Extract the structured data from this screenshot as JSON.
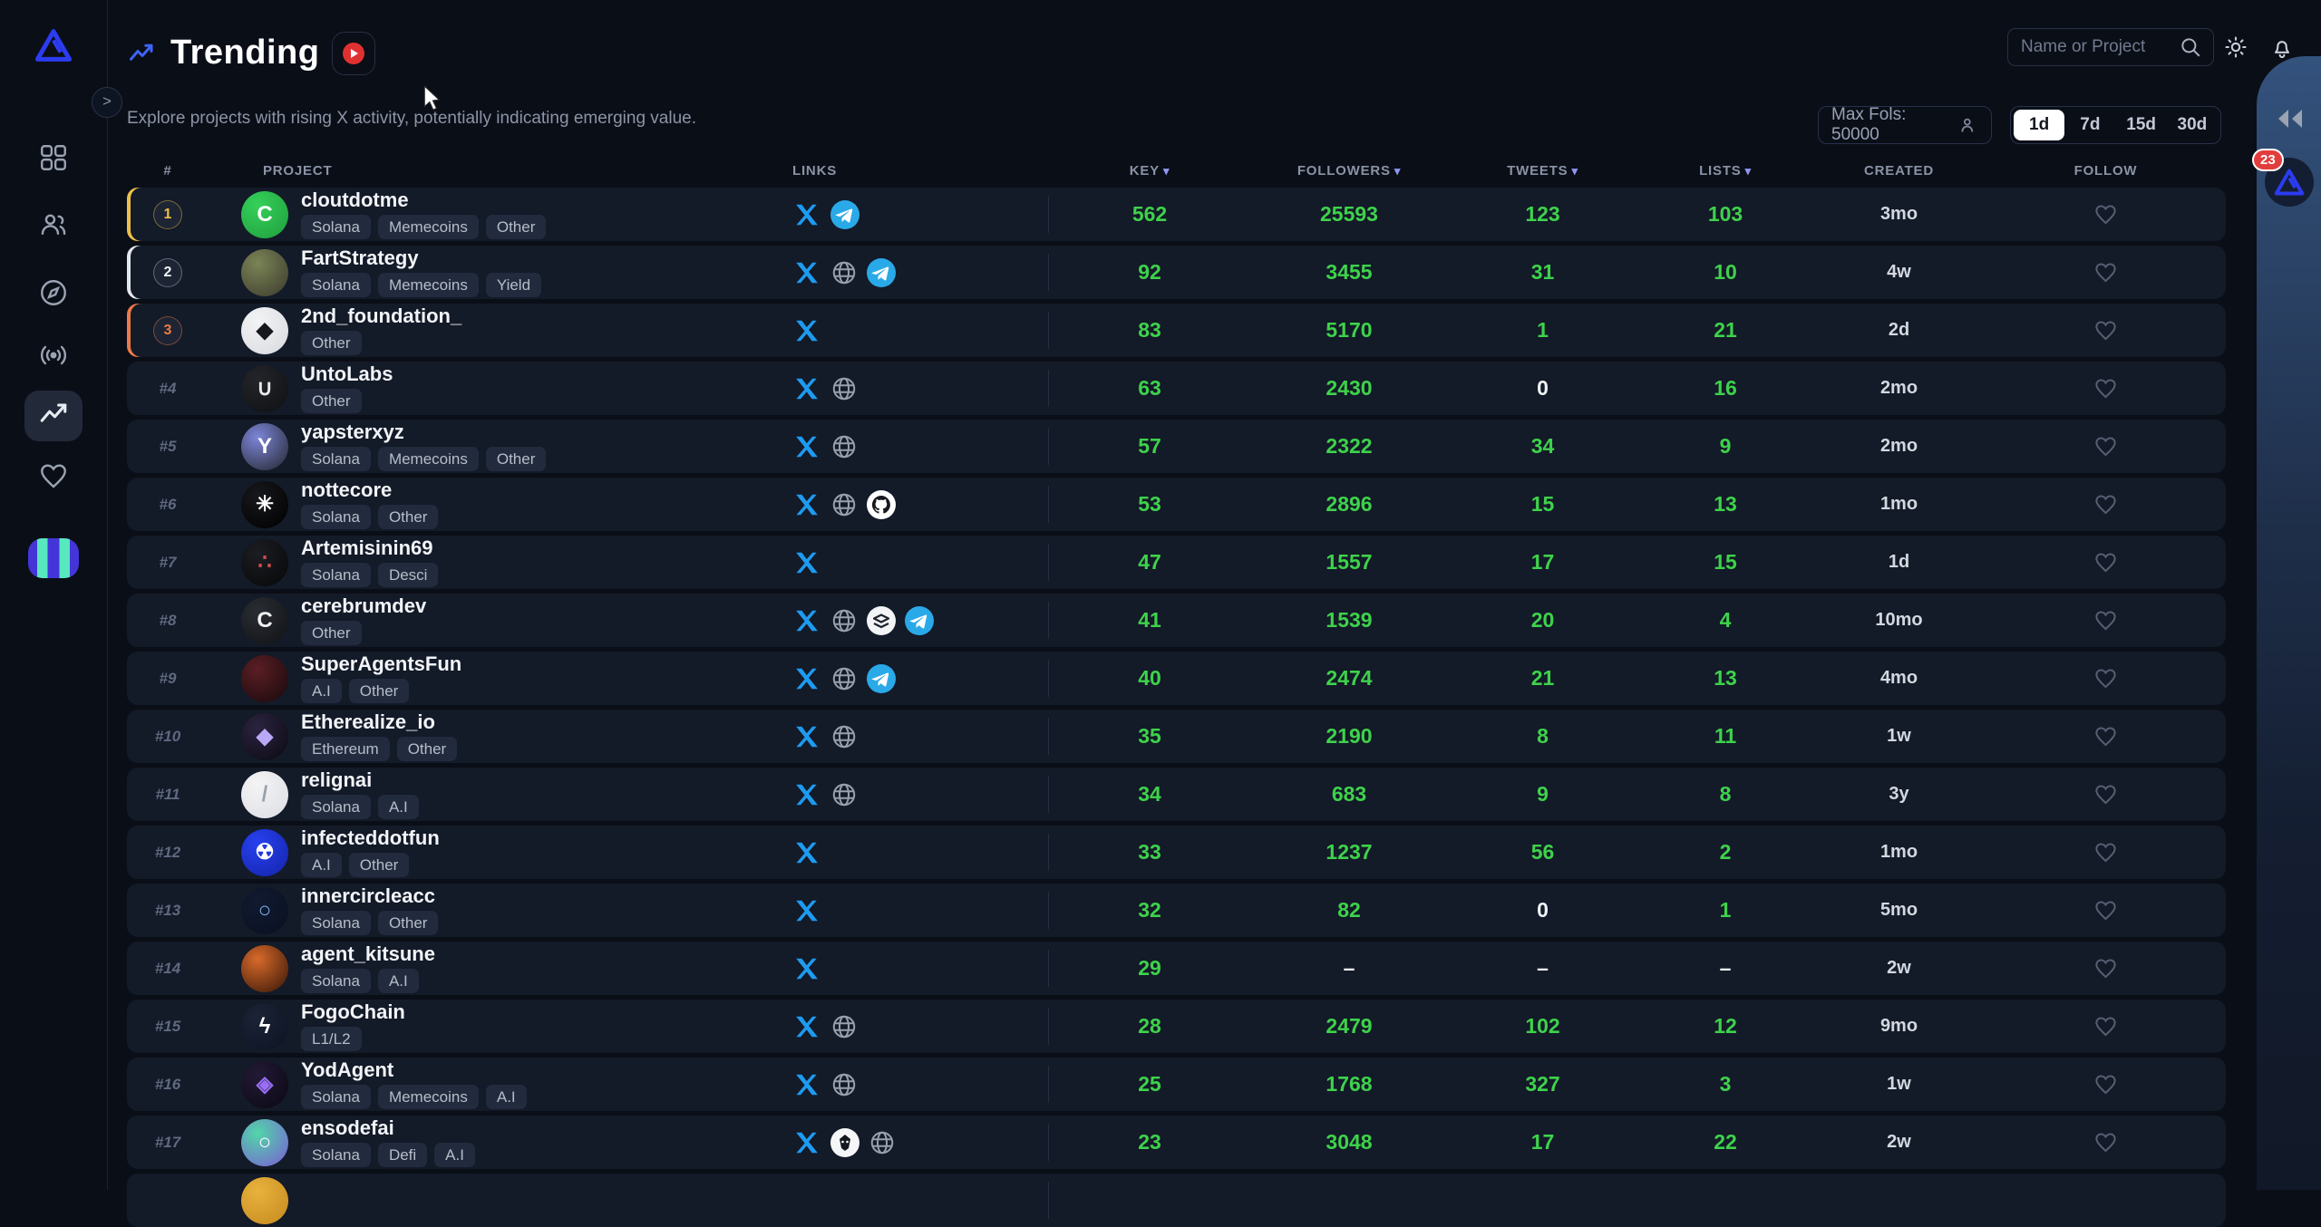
{
  "header": {
    "title": "Trending",
    "subtitle": "Explore projects with rising X activity, potentially indicating emerging value."
  },
  "topbar": {
    "search_placeholder": "Name or Project"
  },
  "filters": {
    "max_fols_label": "Max Fols: 50000",
    "ranges": [
      "1d",
      "7d",
      "15d",
      "30d"
    ],
    "active_range": "1d"
  },
  "right_panel": {
    "notification_count": "23"
  },
  "colors": {
    "accent_green": "#3ed24b",
    "gold": "#edbf4a",
    "silver": "#e3e8f0",
    "bronze": "#ec7a45",
    "x_blue": "#1d9bf0",
    "telegram_blue": "#2aa9e8",
    "row_bg": "#131a28",
    "page_bg": "#0a0e17"
  },
  "sidebar": {
    "items": [
      {
        "name": "dashboard",
        "icon": "grid-icon",
        "active": false
      },
      {
        "name": "community",
        "icon": "people-icon",
        "active": false
      },
      {
        "name": "explore",
        "icon": "compass-icon",
        "active": false
      },
      {
        "name": "signals",
        "icon": "broadcast-icon",
        "active": false
      },
      {
        "name": "trending",
        "icon": "trending-icon",
        "active": true
      },
      {
        "name": "favorites",
        "icon": "heart-icon",
        "active": false
      }
    ]
  },
  "table": {
    "columns": [
      {
        "key": "rank",
        "label": "#",
        "sortable": false
      },
      {
        "key": "project",
        "label": "PROJECT",
        "sortable": false
      },
      {
        "key": "links",
        "label": "LINKS",
        "sortable": false
      },
      {
        "key": "key",
        "label": "KEY",
        "sortable": true
      },
      {
        "key": "followers",
        "label": "FOLLOWERS",
        "sortable": true
      },
      {
        "key": "tweets",
        "label": "TWEETS",
        "sortable": true
      },
      {
        "key": "lists",
        "label": "LISTS",
        "sortable": true
      },
      {
        "key": "created",
        "label": "CREATED",
        "sortable": false
      },
      {
        "key": "follow",
        "label": "FOLLOW",
        "sortable": false
      }
    ],
    "rows": [
      {
        "rank": 1,
        "medal": "gold",
        "name": "cloutdotme",
        "tags": [
          "Solana",
          "Memecoins",
          "Other"
        ],
        "links": [
          "x",
          "telegram"
        ],
        "key": "562",
        "followers": "25593",
        "tweets": "123",
        "lists": "103",
        "created": "3mo",
        "avatar": {
          "bg1": "#35d05a",
          "bg2": "#1f9e3c",
          "glyph": "C",
          "fg": "#ffffff"
        }
      },
      {
        "rank": 2,
        "medal": "silver",
        "name": "FartStrategy",
        "tags": [
          "Solana",
          "Memecoins",
          "Yield"
        ],
        "links": [
          "x",
          "globe",
          "telegram"
        ],
        "key": "92",
        "followers": "3455",
        "tweets": "31",
        "lists": "10",
        "created": "4w",
        "avatar": {
          "bg1": "#7a8456",
          "bg2": "#3c3a2c",
          "glyph": "",
          "fg": "#ffffff"
        }
      },
      {
        "rank": 3,
        "medal": "bronze",
        "name": "2nd_foundation_",
        "tags": [
          "Other"
        ],
        "links": [
          "x"
        ],
        "key": "83",
        "followers": "5170",
        "tweets": "1",
        "lists": "21",
        "created": "2d",
        "avatar": {
          "bg1": "#f2f3f5",
          "bg2": "#d8dade",
          "glyph": "◆",
          "fg": "#16181d"
        }
      },
      {
        "rank": 4,
        "medal": null,
        "name": "UntoLabs",
        "tags": [
          "Other"
        ],
        "links": [
          "x",
          "globe"
        ],
        "key": "63",
        "followers": "2430",
        "tweets": "0",
        "lists": "16",
        "created": "2mo",
        "avatar": {
          "bg1": "#23252a",
          "bg2": "#0e1013",
          "glyph": "∪",
          "fg": "#e8e8e8"
        }
      },
      {
        "rank": 5,
        "medal": null,
        "name": "yapsterxyz",
        "tags": [
          "Solana",
          "Memecoins",
          "Other"
        ],
        "links": [
          "x",
          "globe"
        ],
        "key": "57",
        "followers": "2322",
        "tweets": "34",
        "lists": "9",
        "created": "2mo",
        "avatar": {
          "bg1": "#7c86d8",
          "bg2": "#23252d",
          "glyph": "Y",
          "fg": "#ffffff"
        }
      },
      {
        "rank": 6,
        "medal": null,
        "name": "nottecore",
        "tags": [
          "Solana",
          "Other"
        ],
        "links": [
          "x",
          "globe",
          "github"
        ],
        "key": "53",
        "followers": "2896",
        "tweets": "15",
        "lists": "13",
        "created": "1mo",
        "avatar": {
          "bg1": "#17181c",
          "bg2": "#000000",
          "glyph": "✳",
          "fg": "#ffffff"
        }
      },
      {
        "rank": 7,
        "medal": null,
        "name": "Artemisinin69",
        "tags": [
          "Solana",
          "Desci"
        ],
        "links": [
          "x"
        ],
        "key": "47",
        "followers": "1557",
        "tweets": "17",
        "lists": "15",
        "created": "1d",
        "avatar": {
          "bg1": "#1c1d22",
          "bg2": "#060708",
          "glyph": "∴",
          "fg": "#d05050"
        }
      },
      {
        "rank": 8,
        "medal": null,
        "name": "cerebrumdev",
        "tags": [
          "Other"
        ],
        "links": [
          "x",
          "globe",
          "docs",
          "telegram"
        ],
        "key": "41",
        "followers": "1539",
        "tweets": "20",
        "lists": "4",
        "created": "10mo",
        "avatar": {
          "bg1": "#2a2d33",
          "bg2": "#101216",
          "glyph": "C",
          "fg": "#f2f3f5"
        }
      },
      {
        "rank": 9,
        "medal": null,
        "name": "SuperAgentsFun",
        "tags": [
          "A.I",
          "Other"
        ],
        "links": [
          "x",
          "globe",
          "telegram"
        ],
        "key": "40",
        "followers": "2474",
        "tweets": "21",
        "lists": "13",
        "created": "4mo",
        "avatar": {
          "bg1": "#5a1e24",
          "bg2": "#17090c",
          "glyph": "",
          "fg": "#ffffff"
        }
      },
      {
        "rank": 10,
        "medal": null,
        "name": "Etherealize_io",
        "tags": [
          "Ethereum",
          "Other"
        ],
        "links": [
          "x",
          "globe"
        ],
        "key": "35",
        "followers": "2190",
        "tweets": "8",
        "lists": "11",
        "created": "1w",
        "avatar": {
          "bg1": "#2b2340",
          "bg2": "#0b0a12",
          "glyph": "◆",
          "fg": "#b9a8f5"
        }
      },
      {
        "rank": 11,
        "medal": null,
        "name": "relignai",
        "tags": [
          "Solana",
          "A.I"
        ],
        "links": [
          "x",
          "globe"
        ],
        "key": "34",
        "followers": "683",
        "tweets": "9",
        "lists": "8",
        "created": "3y",
        "avatar": {
          "bg1": "#f4f4f6",
          "bg2": "#dcdde2",
          "glyph": "/",
          "fg": "#9aa0ab"
        }
      },
      {
        "rank": 12,
        "medal": null,
        "name": "infecteddotfun",
        "tags": [
          "A.I",
          "Other"
        ],
        "links": [
          "x"
        ],
        "key": "33",
        "followers": "1237",
        "tweets": "56",
        "lists": "2",
        "created": "1mo",
        "avatar": {
          "bg1": "#2741f0",
          "bg2": "#1423a8",
          "glyph": "☢",
          "fg": "#ffffff"
        }
      },
      {
        "rank": 13,
        "medal": null,
        "name": "innercircleacc",
        "tags": [
          "Solana",
          "Other"
        ],
        "links": [
          "x"
        ],
        "key": "32",
        "followers": "82",
        "tweets": "0",
        "lists": "1",
        "created": "5mo",
        "avatar": {
          "bg1": "#101a30",
          "bg2": "#0a1020",
          "glyph": "○",
          "fg": "#7db5f0"
        }
      },
      {
        "rank": 14,
        "medal": null,
        "name": "agent_kitsune",
        "tags": [
          "Solana",
          "A.I"
        ],
        "links": [
          "x"
        ],
        "key": "29",
        "followers": "–",
        "tweets": "–",
        "lists": "–",
        "created": "2w",
        "avatar": {
          "bg1": "#d86a2a",
          "bg2": "#341407",
          "glyph": "",
          "fg": "#ffffff"
        }
      },
      {
        "rank": 15,
        "medal": null,
        "name": "FogoChain",
        "tags": [
          "L1/L2"
        ],
        "links": [
          "x",
          "globe"
        ],
        "key": "28",
        "followers": "2479",
        "tweets": "102",
        "lists": "12",
        "created": "9mo",
        "avatar": {
          "bg1": "#1b2336",
          "bg2": "#0d1322",
          "glyph": "ϟ",
          "fg": "#ffffff"
        }
      },
      {
        "rank": 16,
        "medal": null,
        "name": "YodAgent",
        "tags": [
          "Solana",
          "Memecoins",
          "A.I"
        ],
        "links": [
          "x",
          "globe"
        ],
        "key": "25",
        "followers": "1768",
        "tweets": "327",
        "lists": "3",
        "created": "1w",
        "avatar": {
          "bg1": "#221a35",
          "bg2": "#0b0714",
          "glyph": "◈",
          "fg": "#9a6ff5"
        }
      },
      {
        "rank": 17,
        "medal": null,
        "name": "ensodefai",
        "tags": [
          "Solana",
          "Defi",
          "A.I"
        ],
        "links": [
          "x",
          "bird",
          "globe"
        ],
        "key": "23",
        "followers": "3048",
        "tweets": "17",
        "lists": "22",
        "created": "2w",
        "avatar": {
          "bg1": "#52d6a8",
          "bg2": "#7a5cd6",
          "glyph": "○",
          "fg": "#ffffff"
        }
      },
      {
        "rank": null,
        "medal": null,
        "partial": true,
        "name": "",
        "tags": [],
        "links": [],
        "key": "",
        "followers": "",
        "tweets": "",
        "lists": "",
        "created": "",
        "avatar": {
          "bg1": "#e8b23d",
          "bg2": "#c58a1f",
          "glyph": "",
          "fg": "#ffffff"
        }
      }
    ]
  }
}
